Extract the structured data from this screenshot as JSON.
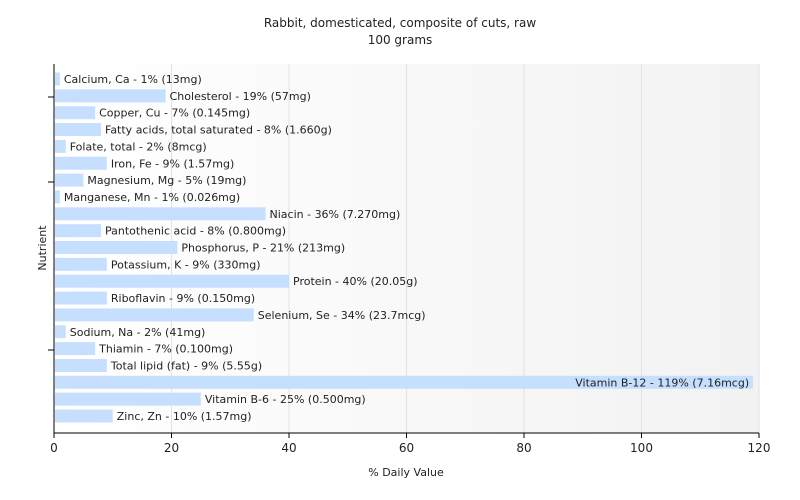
{
  "chart_data": {
    "type": "bar",
    "orientation": "horizontal",
    "title": "Rabbit, domesticated, composite of cuts, raw",
    "subtitle": "100 grams",
    "xlabel": "% Daily Value",
    "ylabel": "Nutrient",
    "xlim": [
      0,
      120
    ],
    "xticks": [
      0,
      20,
      40,
      60,
      80,
      100,
      120
    ],
    "grid": true,
    "bar_color": "#c6dfff",
    "categories": [
      "Calcium, Ca",
      "Cholesterol",
      "Copper, Cu",
      "Fatty acids, total saturated",
      "Folate, total",
      "Iron, Fe",
      "Magnesium, Mg",
      "Manganese, Mn",
      "Niacin",
      "Pantothenic acid",
      "Phosphorus, P",
      "Potassium, K",
      "Protein",
      "Riboflavin",
      "Selenium, Se",
      "Sodium, Na",
      "Thiamin",
      "Total lipid (fat)",
      "Vitamin B-12",
      "Vitamin B-6",
      "Zinc, Zn"
    ],
    "values": [
      1,
      19,
      7,
      8,
      2,
      9,
      5,
      1,
      36,
      8,
      21,
      9,
      40,
      9,
      34,
      2,
      7,
      9,
      119,
      25,
      10
    ],
    "labels": [
      "Calcium, Ca - 1% (13mg)",
      "Cholesterol - 19% (57mg)",
      "Copper, Cu - 7% (0.145mg)",
      "Fatty acids, total saturated - 8% (1.660g)",
      "Folate, total - 2% (8mcg)",
      "Iron, Fe - 9% (1.57mg)",
      "Magnesium, Mg - 5% (19mg)",
      "Manganese, Mn - 1% (0.026mg)",
      "Niacin - 36% (7.270mg)",
      "Pantothenic acid - 8% (0.800mg)",
      "Phosphorus, P - 21% (213mg)",
      "Potassium, K - 9% (330mg)",
      "Protein - 40% (20.05g)",
      "Riboflavin - 9% (0.150mg)",
      "Selenium, Se - 34% (23.7mcg)",
      "Sodium, Na - 2% (41mg)",
      "Thiamin - 7% (0.100mg)",
      "Total lipid (fat) - 9% (5.55g)",
      "Vitamin B-12 - 119% (7.16mcg)",
      "Vitamin B-6 - 25% (0.500mg)",
      "Zinc, Zn - 10% (1.57mg)"
    ]
  }
}
